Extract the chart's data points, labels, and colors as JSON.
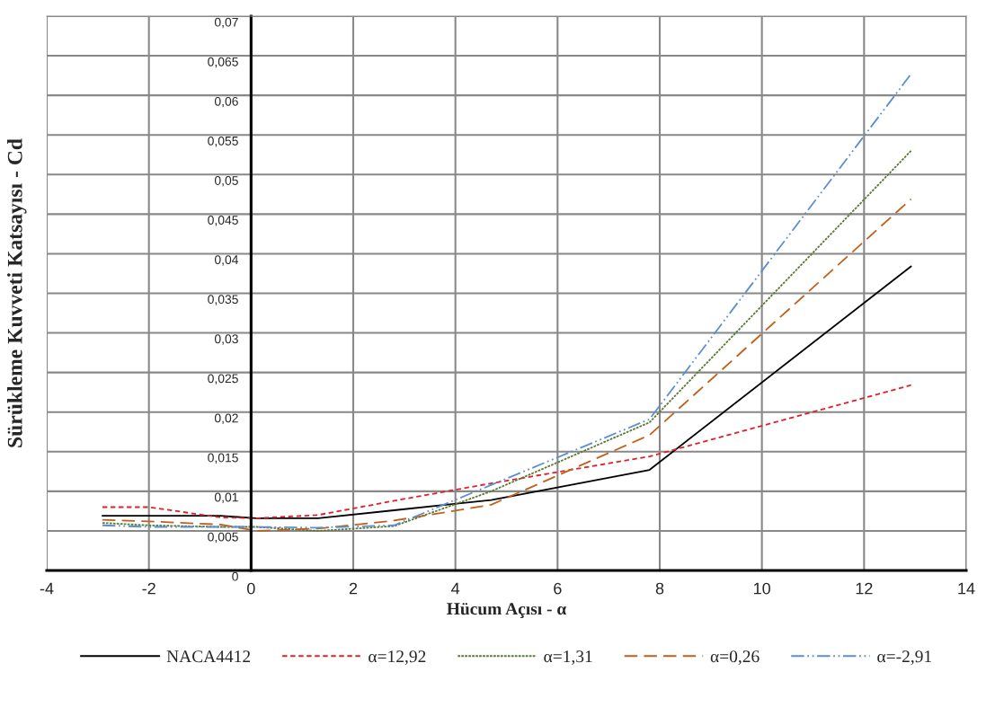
{
  "chart_data": {
    "type": "line",
    "xlabel": "Hücum Açısı - α",
    "ylabel": "Sürükleme Kuvveti Katsayısı - Cd",
    "x": [
      -2.91,
      -2,
      -0.6,
      0.1,
      1.31,
      2.8,
      4.7,
      7.8,
      12.92
    ],
    "series": [
      {
        "name": "NACA4412",
        "color": "#000000",
        "line_style": "solid",
        "values": [
          0.0069,
          0.0069,
          0.0069,
          0.0066,
          0.0066,
          0.0076,
          0.0089,
          0.0127,
          0.0384
        ]
      },
      {
        "name": "α=12,92",
        "color": "#e0202a",
        "line_style": "dashed",
        "values": [
          0.008,
          0.008,
          0.0067,
          0.0066,
          0.007,
          0.0088,
          0.011,
          0.0144,
          0.0234
        ]
      },
      {
        "name": "α=1,31",
        "color": "#5a7a32",
        "line_style": "dotted",
        "values": [
          0.006,
          0.0057,
          0.0055,
          0.0055,
          0.005,
          0.0056,
          0.01,
          0.0187,
          0.053
        ]
      },
      {
        "name": "α=0,26",
        "color": "#c0601a",
        "line_style": "longdashed",
        "values": [
          0.0064,
          0.0062,
          0.0058,
          0.005,
          0.0053,
          0.0063,
          0.0083,
          0.0171,
          0.0469
        ]
      },
      {
        "name": "α=-2,91",
        "color": "#5b8fd0",
        "line_style": "dashdot",
        "values": [
          0.0057,
          0.0055,
          0.0055,
          0.0055,
          0.0054,
          0.0057,
          0.0108,
          0.0191,
          0.0627
        ]
      }
    ],
    "xlim": [
      -4,
      14
    ],
    "xticks": [
      -4,
      -2,
      0,
      2,
      4,
      6,
      8,
      10,
      12,
      14
    ],
    "ylim": [
      0,
      0.07
    ],
    "yticks": [
      0,
      {
        "value": 0.005,
        "label": "0,005"
      },
      {
        "value": 0.01,
        "label": "0,01"
      },
      {
        "value": 0.015,
        "label": "0,015"
      },
      {
        "value": 0.02,
        "label": "0,02"
      },
      {
        "value": 0.025,
        "label": "0,025"
      },
      {
        "value": 0.03,
        "label": "0,03"
      },
      {
        "value": 0.035,
        "label": "0,035"
      },
      {
        "value": 0.04,
        "label": "0,04"
      },
      {
        "value": 0.045,
        "label": "0,045"
      },
      {
        "value": 0.05,
        "label": "0,05"
      },
      {
        "value": 0.055,
        "label": "0,055"
      },
      {
        "value": 0.06,
        "label": "0,06"
      },
      {
        "value": 0.065,
        "label": "0,065"
      },
      {
        "value": 0.07,
        "label": "0,07"
      }
    ],
    "grid": true,
    "legend": "bottom",
    "marker": "none"
  }
}
